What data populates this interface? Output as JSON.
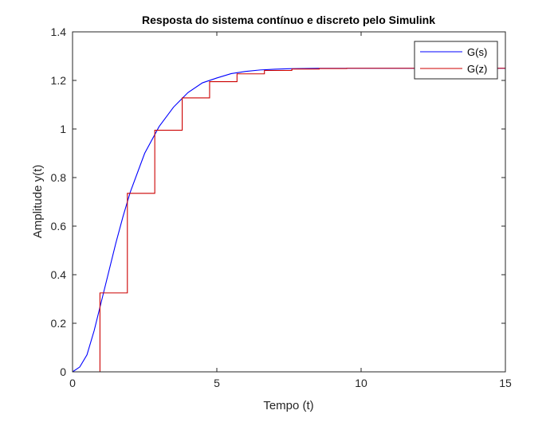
{
  "chart_data": {
    "type": "line",
    "title": "Resposta do sistema contínuo e discreto pelo Simulink",
    "xlabel": "Tempo (t)",
    "ylabel": "Amplitude y(t)",
    "xlim": [
      0,
      15
    ],
    "ylim": [
      0,
      1.4
    ],
    "xticks": [
      0,
      5,
      10,
      15
    ],
    "yticks": [
      0,
      0.2,
      0.4,
      0.6,
      0.8,
      1,
      1.2,
      1.4
    ],
    "xtick_labels": [
      "0",
      "5",
      "10",
      "15"
    ],
    "ytick_labels": [
      "0",
      "0.2",
      "0.4",
      "0.6",
      "0.8",
      "1",
      "1.2",
      "1.4"
    ],
    "grid": false,
    "legend_position": "top-right",
    "series": [
      {
        "name": "G(s)",
        "color": "#0000ff",
        "style": "line",
        "x": [
          0,
          0.25,
          0.5,
          0.75,
          1,
          1.25,
          1.5,
          1.75,
          2,
          2.5,
          3,
          3.5,
          4,
          4.5,
          5,
          5.5,
          6,
          6.5,
          7,
          7.5,
          8,
          8.5,
          9,
          9.5,
          10,
          11,
          12,
          13,
          14,
          15
        ],
        "y": [
          0,
          0.02,
          0.07,
          0.17,
          0.29,
          0.41,
          0.53,
          0.64,
          0.74,
          0.9,
          1.01,
          1.09,
          1.15,
          1.19,
          1.21,
          1.228,
          1.237,
          1.243,
          1.246,
          1.248,
          1.249,
          1.25,
          1.25,
          1.25,
          1.25,
          1.25,
          1.25,
          1.25,
          1.25,
          1.25
        ]
      },
      {
        "name": "G(z)",
        "color": "#cc0000",
        "style": "step",
        "x": [
          0,
          0.95,
          1.9,
          2.85,
          3.8,
          4.75,
          5.7,
          6.65,
          7.6,
          8.55,
          9.5,
          15
        ],
        "y": [
          0,
          0.325,
          0.735,
          0.995,
          1.128,
          1.195,
          1.227,
          1.241,
          1.247,
          1.249,
          1.25,
          1.25
        ]
      }
    ]
  }
}
